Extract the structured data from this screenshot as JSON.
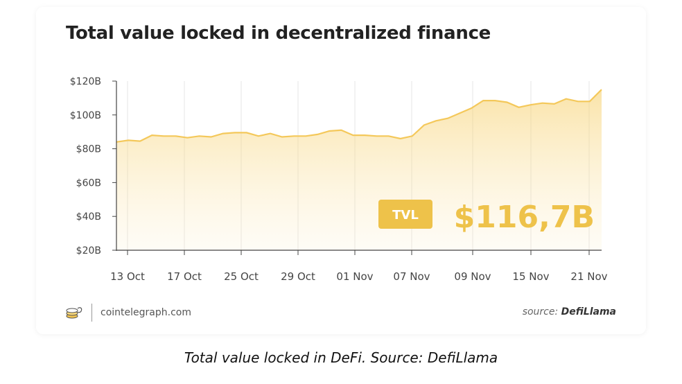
{
  "header": {
    "title": "Total value locked in decentralized finance"
  },
  "badge": {
    "label": "TVL",
    "value": "$116,7B"
  },
  "footer": {
    "brand": "cointelegraph.com",
    "source_prefix": "source:",
    "source_name": "DefiLlama"
  },
  "caption": "Total value locked in DeFi. Source: DefiLlama",
  "colors": {
    "accent": "#f2c451",
    "line": "#f4c85a",
    "badge": "#eec24a",
    "axis": "#444444",
    "grid": "#e6e6e6"
  },
  "chart_data": {
    "type": "area",
    "title": "Total value locked in decentralized finance",
    "x_tick_labels": [
      "13 Oct",
      "17 Oct",
      "25 Oct",
      "29 Oct",
      "01 Nov",
      "07 Nov",
      "09 Nov",
      "15 Nov",
      "21 Nov"
    ],
    "y_tick_labels": [
      "$20B",
      "$40B",
      "$60B",
      "$80B",
      "$100B",
      "$120B"
    ],
    "y_ticks": [
      20,
      40,
      60,
      80,
      100,
      120
    ],
    "ylim": [
      20,
      120
    ],
    "grid": "vertical",
    "series": [
      {
        "values": [
          84,
          85,
          84.5,
          88,
          87.5,
          87.5,
          86.5,
          87.5,
          87,
          89,
          89.5,
          89.5,
          87.5,
          89,
          87,
          87.5,
          87.5,
          88.5,
          90.5,
          91,
          88,
          88,
          87.5,
          87.5,
          86,
          87.5,
          94,
          96.5,
          98,
          101,
          104,
          108.5,
          108.5,
          107.5,
          104.5,
          106,
          107,
          106.5,
          109.5,
          108,
          108,
          115
        ]
      }
    ]
  }
}
